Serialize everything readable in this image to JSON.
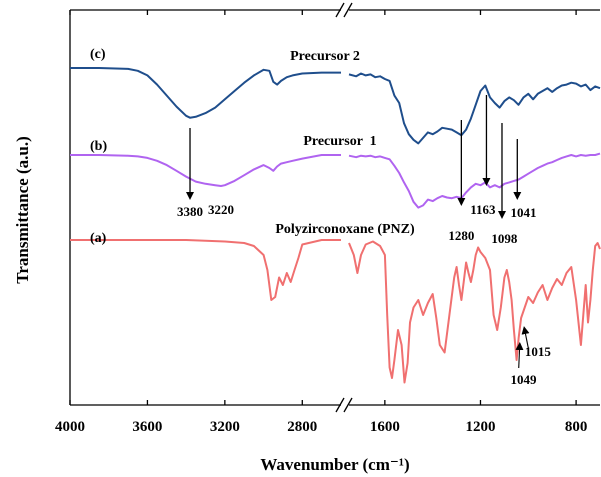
{
  "chart_data": {
    "type": "line",
    "title": "",
    "xlabel": "Wavenumber (cm⁻¹)",
    "ylabel": "Transmittance (a.u.)",
    "x_axis_reversed": true,
    "x_axis_break": [
      2600,
      1750
    ],
    "xlim": [
      4000,
      700
    ],
    "x_ticks": [
      {
        "value": 4000,
        "label": "4000"
      },
      {
        "value": 3600,
        "label": "3600"
      },
      {
        "value": 3200,
        "label": "3200"
      },
      {
        "value": 2800,
        "label": "2800"
      },
      {
        "value": 1600,
        "label": "1600"
      },
      {
        "value": 1200,
        "label": "1200"
      },
      {
        "value": 800,
        "label": "800"
      }
    ],
    "y_ticks_shown": false,
    "grid": false,
    "series": [
      {
        "name": "(c)",
        "label": "Precursor 2",
        "color": "#1f4e8c",
        "x": [
          4000,
          3850,
          3700,
          3650,
          3600,
          3550,
          3500,
          3450,
          3400,
          3380,
          3350,
          3300,
          3250,
          3200,
          3150,
          3100,
          3050,
          3000,
          2970,
          2950,
          2930,
          2910,
          2880,
          2850,
          2800,
          2700,
          2600,
          1750,
          1720,
          1700,
          1680,
          1660,
          1640,
          1620,
          1600,
          1580,
          1560,
          1540,
          1520,
          1500,
          1480,
          1460,
          1440,
          1420,
          1400,
          1380,
          1360,
          1340,
          1320,
          1300,
          1280,
          1260,
          1240,
          1220,
          1200,
          1180,
          1160,
          1140,
          1120,
          1100,
          1080,
          1060,
          1041,
          1020,
          1000,
          980,
          960,
          940,
          920,
          900,
          880,
          860,
          840,
          820,
          800,
          780,
          760,
          740,
          720,
          700
        ],
        "y": [
          100,
          100,
          99,
          97,
          92,
          82,
          70,
          58,
          48,
          46,
          47,
          51,
          57,
          66,
          75,
          84,
          92,
          98,
          97,
          85,
          82,
          86,
          90,
          92,
          94,
          95,
          95,
          93,
          91,
          94,
          92,
          93,
          90,
          91,
          88,
          86,
          70,
          62,
          40,
          28,
          22,
          18,
          24,
          30,
          28,
          31,
          35,
          34,
          33,
          30,
          27,
          33,
          45,
          60,
          75,
          81,
          68,
          62,
          57,
          64,
          68,
          65,
          60,
          68,
          72,
          66,
          72,
          75,
          78,
          74,
          78,
          81,
          82,
          84,
          83,
          80,
          82,
          76,
          80,
          78
        ]
      },
      {
        "name": "(b)",
        "label": "Precursor  1",
        "color": "#b064f0",
        "x": [
          4000,
          3850,
          3700,
          3650,
          3600,
          3550,
          3500,
          3450,
          3400,
          3350,
          3300,
          3250,
          3220,
          3200,
          3150,
          3100,
          3050,
          3000,
          2970,
          2950,
          2930,
          2910,
          2880,
          2850,
          2800,
          2700,
          2600,
          1750,
          1720,
          1700,
          1680,
          1660,
          1640,
          1620,
          1600,
          1580,
          1560,
          1540,
          1520,
          1500,
          1480,
          1460,
          1440,
          1420,
          1400,
          1380,
          1360,
          1340,
          1320,
          1300,
          1280,
          1260,
          1240,
          1220,
          1200,
          1180,
          1160,
          1140,
          1120,
          1100,
          1080,
          1060,
          1040,
          1020,
          1000,
          980,
          960,
          940,
          920,
          900,
          880,
          860,
          840,
          820,
          800,
          780,
          760,
          740,
          720,
          700
        ],
        "y": [
          100,
          100,
          99,
          98,
          96,
          92,
          86,
          78,
          70,
          63,
          60,
          58,
          57,
          58,
          64,
          72,
          80,
          86,
          82,
          78,
          84,
          88,
          90,
          92,
          95,
          100,
          100,
          99,
          97,
          99,
          98,
          99,
          97,
          98,
          96,
          94,
          85,
          75,
          62,
          50,
          35,
          27,
          30,
          38,
          36,
          40,
          43,
          41,
          40,
          42,
          40,
          48,
          55,
          60,
          58,
          62,
          55,
          58,
          55,
          60,
          62,
          64,
          66,
          70,
          74,
          78,
          82,
          85,
          88,
          90,
          93,
          96,
          98,
          100,
          98,
          100,
          99,
          100,
          100,
          102
        ]
      },
      {
        "name": "(a)",
        "label": "Polyzirconoxane (PNZ)",
        "color": "#f07070",
        "x": [
          4000,
          3800,
          3600,
          3400,
          3200,
          3100,
          3050,
          3000,
          2980,
          2960,
          2940,
          2920,
          2900,
          2880,
          2860,
          2840,
          2820,
          2800,
          2700,
          2600,
          1750,
          1730,
          1715,
          1700,
          1680,
          1650,
          1620,
          1600,
          1590,
          1580,
          1570,
          1560,
          1545,
          1530,
          1518,
          1505,
          1495,
          1480,
          1460,
          1440,
          1420,
          1400,
          1385,
          1370,
          1350,
          1330,
          1310,
          1300,
          1290,
          1280,
          1270,
          1260,
          1250,
          1240,
          1230,
          1220,
          1210,
          1200,
          1180,
          1160,
          1145,
          1130,
          1115,
          1100,
          1090,
          1080,
          1070,
          1060,
          1049,
          1040,
          1030,
          1015,
          1000,
          980,
          960,
          940,
          920,
          900,
          880,
          860,
          840,
          820,
          800,
          790,
          780,
          770,
          760,
          750,
          740,
          730,
          720,
          710,
          700
        ],
        "y": [
          100,
          100,
          100,
          100,
          99,
          98,
          96,
          90,
          80,
          60,
          62,
          75,
          70,
          78,
          72,
          80,
          88,
          97,
          100,
          100,
          98,
          90,
          78,
          90,
          97,
          99,
          96,
          90,
          50,
          15,
          8,
          20,
          40,
          30,
          5,
          18,
          45,
          55,
          60,
          50,
          58,
          64,
          48,
          30,
          25,
          50,
          75,
          82,
          70,
          60,
          72,
          85,
          78,
          72,
          80,
          90,
          95,
          92,
          88,
          80,
          50,
          40,
          55,
          75,
          80,
          72,
          60,
          40,
          20,
          35,
          48,
          55,
          62,
          58,
          65,
          70,
          60,
          68,
          74,
          70,
          78,
          82,
          60,
          45,
          30,
          50,
          70,
          45,
          60,
          80,
          96,
          98,
          94
        ]
      }
    ],
    "peak_labels": [
      {
        "text": "3380"
      },
      {
        "text": "3220"
      },
      {
        "text": "1280"
      },
      {
        "text": "1163"
      },
      {
        "text": "1098"
      },
      {
        "text": "1041"
      },
      {
        "text": "1015"
      },
      {
        "text": "1049"
      }
    ]
  }
}
